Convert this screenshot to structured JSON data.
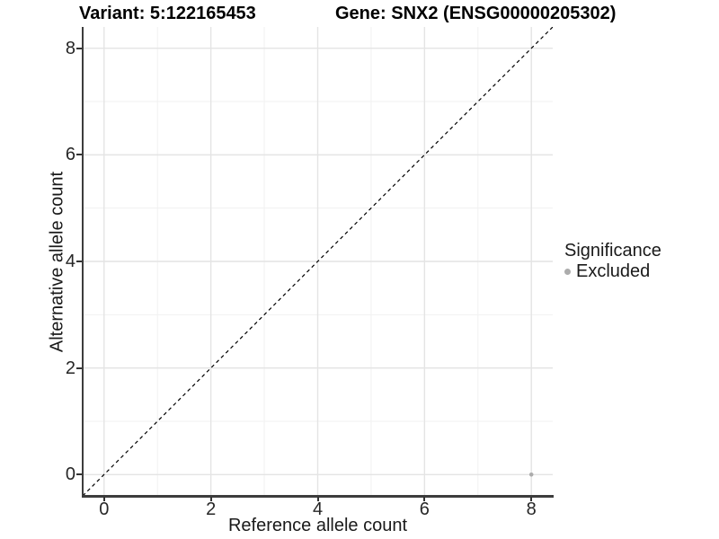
{
  "titles": {
    "left": "Variant: 5:122165453",
    "right": "Gene: SNX2 (ENSG00000205302)"
  },
  "chart_data": {
    "type": "scatter",
    "title_left": "Variant: 5:122165453",
    "title_right": "Gene: SNX2 (ENSG00000205302)",
    "xlabel": "Reference allele count",
    "ylabel": "Alternative allele count",
    "x_ticks": [
      0,
      2,
      4,
      6,
      8
    ],
    "y_ticks": [
      0,
      2,
      4,
      6,
      8
    ],
    "x_minor_ticks": [
      1,
      3,
      5,
      7
    ],
    "y_minor_ticks": [
      1,
      3,
      5,
      7
    ],
    "xlim": [
      -0.4,
      8.4
    ],
    "ylim": [
      -0.4,
      8.4
    ],
    "grid": "major+minor",
    "legend_position": "right",
    "identity_line": {
      "from": [
        -0.4,
        -0.4
      ],
      "to": [
        8.4,
        8.4
      ],
      "style": "dashed",
      "color": "#000000"
    },
    "series": [
      {
        "name": "Excluded",
        "points": [
          {
            "x": 8,
            "y": 0
          }
        ],
        "color": "#acacac"
      }
    ],
    "legend": {
      "title": "Significance",
      "entries": [
        {
          "label": "Excluded",
          "color": "#acacac"
        }
      ]
    }
  },
  "colors": {
    "background": "#ffffff",
    "grid_major": "#e4e4e4",
    "grid_minor": "#f1f1f1",
    "axis_line": "#3d3d3d",
    "tick_mark": "#333333",
    "tick_text": "#262626",
    "point_gray": "#acacac",
    "identity_line": "#000000"
  }
}
